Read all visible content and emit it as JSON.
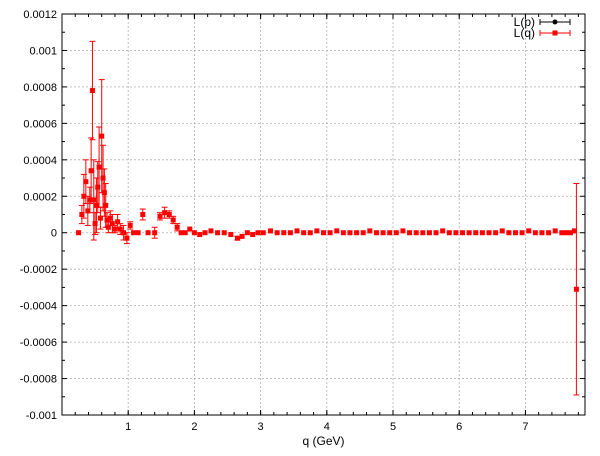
{
  "chart_data": {
    "type": "scatter",
    "title": "",
    "xlabel": "q (GeV)",
    "ylabel": "",
    "xlim": [
      0,
      7.9
    ],
    "ylim": [
      -0.001,
      0.0012
    ],
    "xticks": [
      1,
      2,
      3,
      4,
      5,
      6,
      7
    ],
    "xtick_labels": [
      "1",
      "2",
      "3",
      "4",
      "5",
      "6",
      "7"
    ],
    "yticks": [
      -0.001,
      -0.0008,
      -0.0006,
      -0.0004,
      -0.0002,
      0,
      0.0002,
      0.0004,
      0.0006,
      0.0008,
      0.001,
      0.0012
    ],
    "ytick_labels": [
      "-0.001",
      "-0.0008",
      "-0.0006",
      "-0.0004",
      "-0.0002",
      "0",
      "0.0002",
      "0.0004",
      "0.0006",
      "0.0008",
      "0.001",
      "0.0012"
    ],
    "grid": true,
    "legend_position": "top-right",
    "series": [
      {
        "name": "L(p)",
        "color": "#000000",
        "marker": "circle",
        "x": [],
        "y": [],
        "err": []
      },
      {
        "name": "L(q)",
        "color": "#ff0000",
        "marker": "square",
        "x": [
          0.25,
          0.3,
          0.33,
          0.36,
          0.39,
          0.42,
          0.44,
          0.46,
          0.48,
          0.5,
          0.52,
          0.54,
          0.56,
          0.58,
          0.6,
          0.62,
          0.64,
          0.66,
          0.68,
          0.7,
          0.73,
          0.76,
          0.8,
          0.84,
          0.88,
          0.93,
          0.98,
          1.03,
          1.08,
          1.15,
          1.22,
          1.3,
          1.4,
          1.48,
          1.55,
          1.62,
          1.68,
          1.74,
          1.8,
          1.86,
          1.93,
          2.0,
          2.08,
          2.16,
          2.25,
          2.35,
          2.45,
          2.55,
          2.65,
          2.72,
          2.8,
          2.88,
          2.96,
          3.04,
          3.15,
          3.25,
          3.35,
          3.45,
          3.55,
          3.65,
          3.75,
          3.85,
          3.95,
          4.05,
          4.15,
          4.25,
          4.35,
          4.45,
          4.55,
          4.65,
          4.75,
          4.85,
          4.95,
          5.05,
          5.15,
          5.25,
          5.35,
          5.45,
          5.55,
          5.65,
          5.75,
          5.85,
          5.95,
          6.05,
          6.15,
          6.25,
          6.35,
          6.45,
          6.55,
          6.65,
          6.75,
          6.85,
          6.95,
          7.05,
          7.15,
          7.25,
          7.35,
          7.45,
          7.55,
          7.62,
          7.68,
          7.74,
          7.77
        ],
        "y": [
          0.0,
          0.0001,
          0.0002,
          0.00028,
          0.00012,
          0.00018,
          0.00034,
          0.00078,
          0.00018,
          5e-05,
          0.00015,
          0.00025,
          0.00036,
          8e-05,
          0.00053,
          0.0003,
          0.00022,
          0.00015,
          7e-05,
          3e-05,
          8e-05,
          5e-05,
          2e-05,
          6e-05,
          2e-05,
          0.0,
          -3e-05,
          4e-05,
          0.0,
          0.0,
          0.0001,
          0.0,
          0.0,
          9e-05,
          0.00011,
          0.0001,
          7e-05,
          3e-05,
          0.0,
          0.0,
          2e-05,
          0.0,
          -1e-05,
          0.0,
          1e-05,
          0.0,
          0.0,
          -1e-05,
          -3e-05,
          -2e-05,
          0.0,
          -1e-05,
          0.0,
          0.0,
          1e-05,
          0.0,
          0.0,
          0.0,
          1e-05,
          0.0,
          0.0,
          1e-05,
          0.0,
          0.0,
          1e-05,
          0.0,
          0.0,
          0.0,
          0.0,
          1e-05,
          0.0,
          0.0,
          0.0,
          0.0,
          1e-05,
          0.0,
          0.0,
          0.0,
          0.0,
          0.0,
          1e-05,
          0.0,
          0.0,
          0.0,
          0.0,
          0.0,
          0.0,
          0.0,
          0.0,
          1e-05,
          0.0,
          0.0,
          0.0,
          1e-05,
          0.0,
          0.0,
          0.0,
          1e-05,
          0.0,
          0.0,
          0.0,
          1e-05,
          -0.00031
        ],
        "err": [
          0.0,
          5e-05,
          0.00012,
          0.00012,
          8e-05,
          7e-05,
          0.00018,
          0.00027,
          0.00022,
          6e-05,
          0.00015,
          0.00014,
          0.00022,
          6e-05,
          0.00031,
          0.00018,
          0.00013,
          0.00012,
          4e-05,
          3e-05,
          4e-05,
          5e-05,
          2e-05,
          4e-05,
          3e-05,
          4e-05,
          3e-05,
          2e-05,
          0.0,
          0.0,
          3e-05,
          0.0,
          3e-05,
          2e-05,
          3e-05,
          2e-05,
          2e-05,
          2e-05,
          0.0,
          0.0,
          0.0,
          0.0,
          0.0,
          0.0,
          0.0,
          0.0,
          0.0,
          0.0,
          1e-05,
          0.0,
          0.0,
          0.0,
          0.0,
          0.0,
          0.0,
          0.0,
          0.0,
          0.0,
          0.0,
          0.0,
          0.0,
          0.0,
          0.0,
          0.0,
          0.0,
          0.0,
          0.0,
          0.0,
          0.0,
          0.0,
          0.0,
          0.0,
          0.0,
          0.0,
          0.0,
          0.0,
          0.0,
          0.0,
          0.0,
          0.0,
          0.0,
          0.0,
          0.0,
          0.0,
          0.0,
          0.0,
          0.0,
          0.0,
          0.0,
          0.0,
          0.0,
          0.0,
          0.0,
          0.0,
          0.0,
          0.0,
          0.0,
          0.0,
          0.0,
          0.0,
          0.0,
          0.0,
          0.00058
        ]
      }
    ]
  }
}
